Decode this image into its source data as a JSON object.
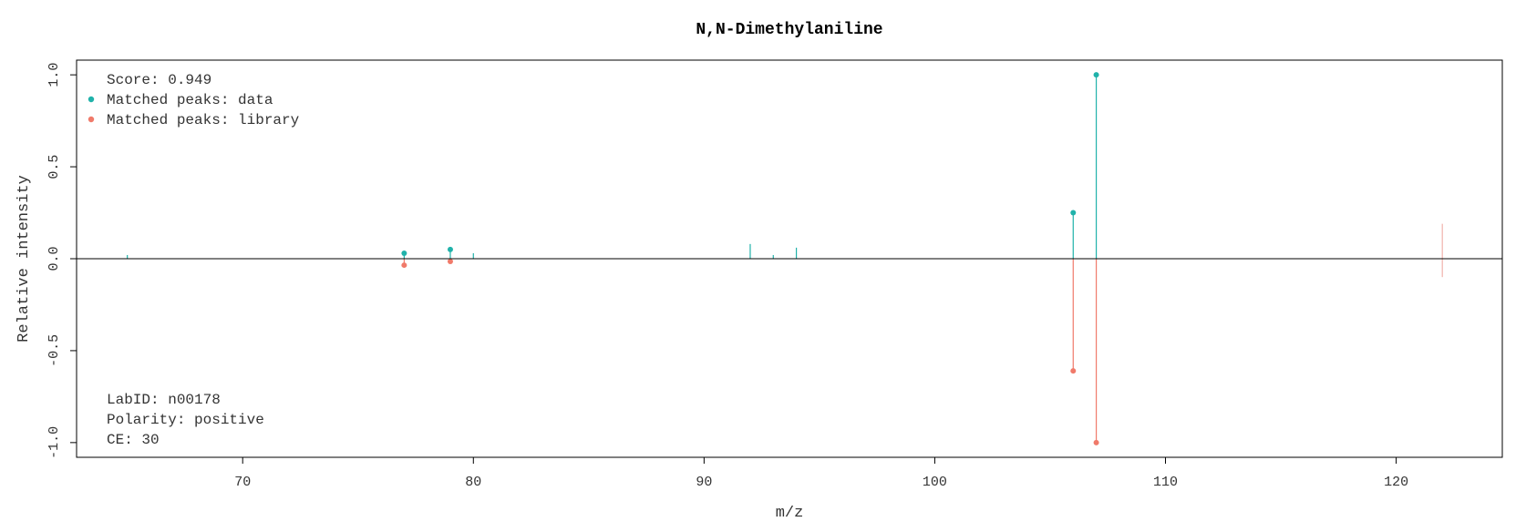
{
  "chart_data": {
    "type": "line",
    "title": "N,N-Dimethylaniline",
    "xlabel": "m/z",
    "ylabel": "Relative intensity",
    "xlim": [
      62.8,
      124.6
    ],
    "ylim": [
      -1.08,
      1.08
    ],
    "xticks": [
      "70",
      "80",
      "90",
      "100",
      "110",
      "120"
    ],
    "xtick_values": [
      70,
      80,
      90,
      100,
      110,
      120
    ],
    "yticks": [
      "-1.0",
      "-0.5",
      "0.0",
      "0.5",
      "1.0"
    ],
    "ytick_values": [
      -1.0,
      -0.5,
      0.0,
      0.5,
      1.0
    ],
    "grid": false,
    "legend": {
      "placement": "top-left",
      "score_text": "Score: 0.949",
      "entries": [
        {
          "label": "Matched peaks: data",
          "color": "#20b2aa"
        },
        {
          "label": "Matched peaks: library",
          "color": "#f07a6a"
        }
      ]
    },
    "info_lines": [
      "LabID: n00178",
      "Polarity: positive",
      "CE: 30"
    ],
    "colors": {
      "data": "#20b2aa",
      "library": "#f07a6a",
      "unmatched_library": "#f2b3ab",
      "baseline": "#000000"
    },
    "series": [
      {
        "name": "Matched peaks: data",
        "peaks": [
          {
            "mz": 65.0,
            "intensity": 0.02,
            "matched": false
          },
          {
            "mz": 77.0,
            "intensity": 0.03,
            "matched": true
          },
          {
            "mz": 79.0,
            "intensity": 0.05,
            "matched": true
          },
          {
            "mz": 80.0,
            "intensity": 0.03,
            "matched": false
          },
          {
            "mz": 92.0,
            "intensity": 0.08,
            "matched": false
          },
          {
            "mz": 93.0,
            "intensity": 0.02,
            "matched": false
          },
          {
            "mz": 94.0,
            "intensity": 0.06,
            "matched": false
          },
          {
            "mz": 106.0,
            "intensity": 0.25,
            "matched": true
          },
          {
            "mz": 107.0,
            "intensity": 1.0,
            "matched": true
          }
        ]
      },
      {
        "name": "Matched peaks: library",
        "peaks": [
          {
            "mz": 77.0,
            "intensity": -0.035,
            "matched": true
          },
          {
            "mz": 79.0,
            "intensity": -0.015,
            "matched": true
          },
          {
            "mz": 106.0,
            "intensity": -0.61,
            "matched": true
          },
          {
            "mz": 107.0,
            "intensity": -1.0,
            "matched": true
          },
          {
            "mz": 122.0,
            "intensity": 0.19,
            "matched": false,
            "lower": -0.1
          }
        ]
      }
    ]
  }
}
